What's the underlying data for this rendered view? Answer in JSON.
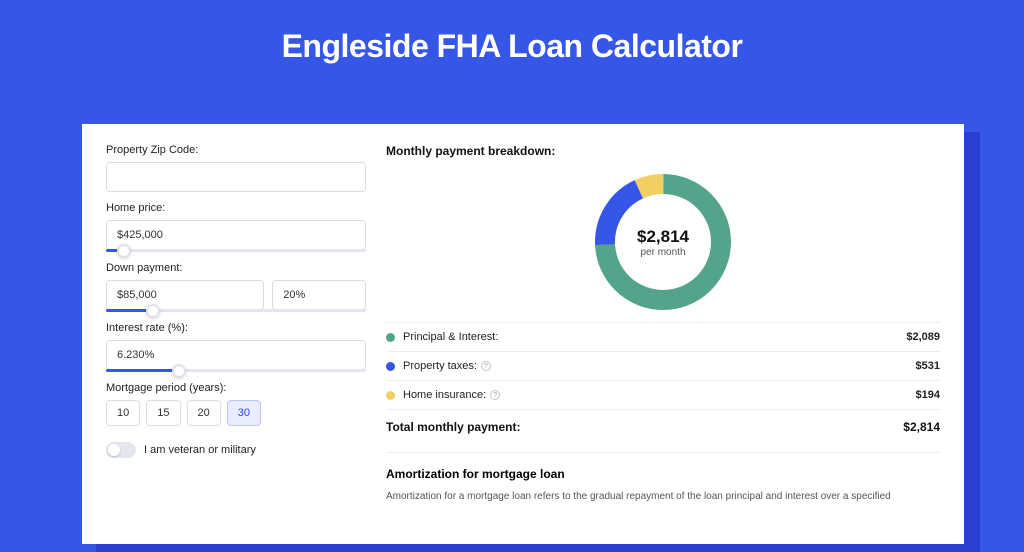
{
  "page": {
    "title": "Engleside FHA Loan Calculator",
    "background_color": "#3556e6",
    "card_shadow_color": "#2a3fd0",
    "card_background": "#ffffff"
  },
  "form": {
    "zip": {
      "label": "Property Zip Code:",
      "value": ""
    },
    "home_price": {
      "label": "Home price:",
      "value": "$425,000",
      "slider_pct": 7
    },
    "down_payment": {
      "label": "Down payment:",
      "amount": "$85,000",
      "percent": "20%",
      "slider_pct": 18
    },
    "interest_rate": {
      "label": "Interest rate (%):",
      "value": "6.230%",
      "slider_pct": 28
    },
    "mortgage_period": {
      "label": "Mortgage period (years):",
      "options": [
        "10",
        "15",
        "20",
        "30"
      ],
      "active_index": 3
    },
    "veteran": {
      "label": "I am veteran or military",
      "on": false
    }
  },
  "breakdown": {
    "title": "Monthly payment breakdown:",
    "donut": {
      "type": "donut",
      "amount": "$2,814",
      "sub": "per month",
      "segments": [
        {
          "label": "Principal & Interest:",
          "value": "$2,089",
          "color": "#54a48b",
          "fraction": 0.742,
          "has_info": false
        },
        {
          "label": "Property taxes:",
          "value": "$531",
          "color": "#3556e6",
          "fraction": 0.189,
          "has_info": true
        },
        {
          "label": "Home insurance:",
          "value": "$194",
          "color": "#f1cf64",
          "fraction": 0.069,
          "has_info": true
        }
      ],
      "stroke_width": 20,
      "radius": 58,
      "center_bg": "#ffffff"
    },
    "total": {
      "label": "Total monthly payment:",
      "value": "$2,814"
    }
  },
  "amortization": {
    "title": "Amortization for mortgage loan",
    "text": "Amortization for a mortgage loan refers to the gradual repayment of the loan principal and interest over a specified"
  }
}
